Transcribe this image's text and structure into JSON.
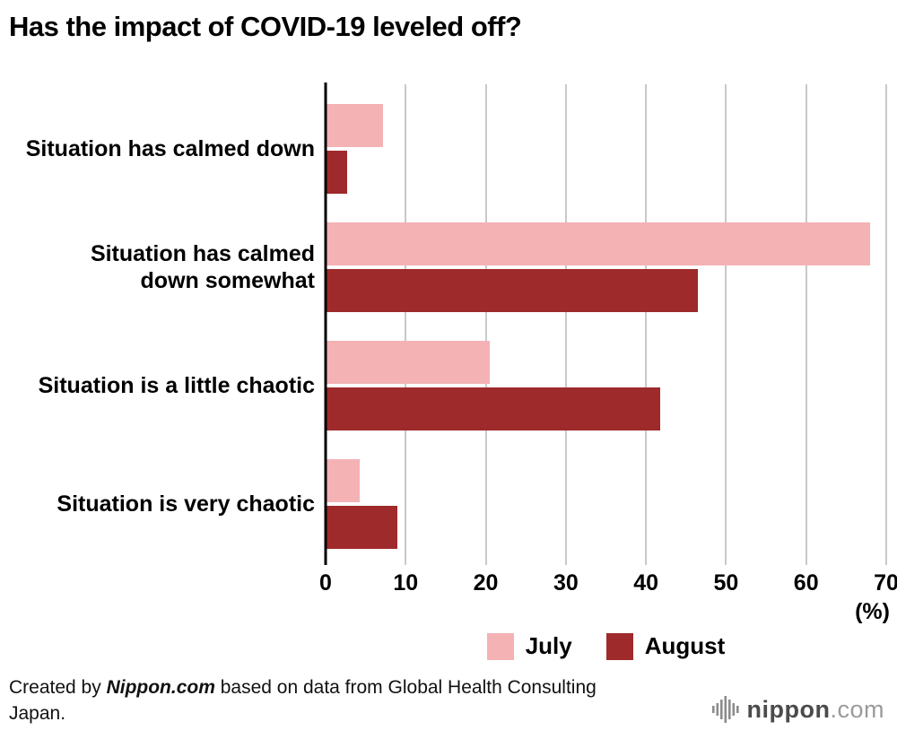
{
  "title": "Has the impact of COVID-19 leveled off?",
  "chart_data": {
    "type": "bar",
    "orientation": "horizontal",
    "title": "Has the impact of COVID-19 leveled off?",
    "categories": [
      "Situation has calmed down",
      "Situation has calmed\ndown somewhat",
      "Situation is a little chaotic",
      "Situation is very chaotic"
    ],
    "series": [
      {
        "name": "July",
        "color": "#f4b2b5",
        "values": [
          7.2,
          68.0,
          20.5,
          4.3
        ]
      },
      {
        "name": "August",
        "color": "#9e2a2b",
        "values": [
          2.7,
          46.5,
          41.8,
          9.0
        ]
      }
    ],
    "xlabel": "(%)",
    "xlim": [
      0,
      70
    ],
    "xticks": [
      0,
      10,
      20,
      30,
      40,
      50,
      60,
      70
    ],
    "grid": true,
    "legend_position": "bottom"
  },
  "footer": {
    "credit_prefix": "Created by ",
    "credit_source": "Nippon.com",
    "credit_suffix": " based on data from Global Health Consulting Japan.",
    "logo_name": "nippon",
    "logo_tld": ".com"
  }
}
